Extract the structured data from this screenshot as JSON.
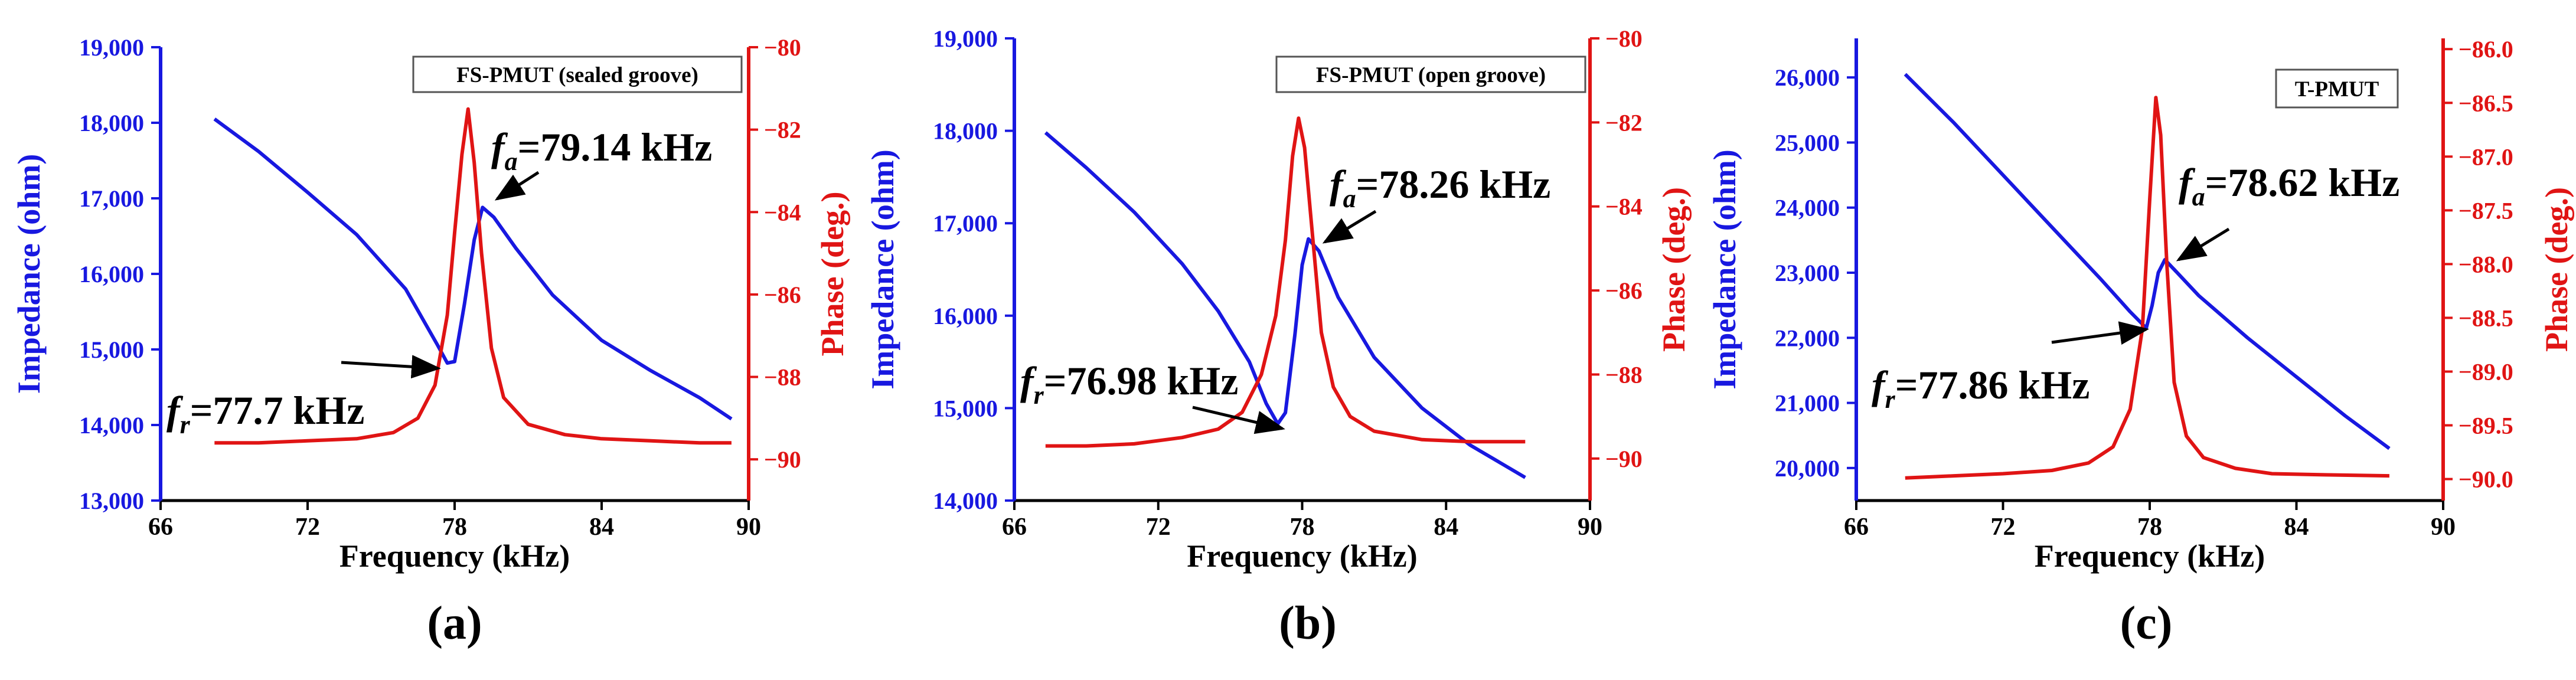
{
  "colors": {
    "impedance": "#1818e0",
    "phase": "#e01414",
    "axis_text": "#000000",
    "arrow": "#000000"
  },
  "chart_data": [
    {
      "type": "line",
      "panel_label": "(a)",
      "legend": "FS-PMUT (sealed groove)",
      "xlabel": "Frequency (kHz)",
      "ylabel": "Impedance (ohm)",
      "y2label": "Phase (deg.)",
      "xlim": [
        66,
        90
      ],
      "xticks": [
        66,
        72,
        78,
        84,
        90
      ],
      "ylim": [
        13000,
        19000
      ],
      "yticks": [
        13000,
        14000,
        15000,
        16000,
        17000,
        18000,
        19000
      ],
      "ytick_labels": [
        "13,000",
        "14,000",
        "15,000",
        "16,000",
        "17,000",
        "18,000",
        "19,000"
      ],
      "y2lim": [
        -91,
        -80
      ],
      "y2ticks": [
        -90,
        -88,
        -86,
        -84,
        -82,
        -80
      ],
      "y2tick_labels": [
        "−90",
        "−88",
        "−86",
        "−84",
        "−82",
        "−80"
      ],
      "series": [
        {
          "name": "Impedance",
          "axis": "left",
          "x": [
            68.2,
            70,
            72,
            74,
            76,
            77.3,
            77.7,
            78.0,
            78.4,
            78.8,
            79.14,
            79.6,
            80.5,
            82,
            84,
            86,
            88,
            89.3
          ],
          "y": [
            18050,
            17620,
            17080,
            16520,
            15800,
            15060,
            14820,
            14840,
            15600,
            16450,
            16880,
            16750,
            16340,
            15720,
            15120,
            14720,
            14360,
            14080
          ]
        },
        {
          "name": "Phase",
          "axis": "right",
          "x": [
            68.2,
            70,
            72,
            74,
            75.5,
            76.5,
            77.2,
            77.7,
            78.0,
            78.3,
            78.55,
            78.8,
            79.1,
            79.5,
            80.0,
            81,
            82.5,
            84,
            86,
            88,
            89.3
          ],
          "y": [
            -89.6,
            -89.6,
            -89.55,
            -89.5,
            -89.35,
            -89.0,
            -88.2,
            -86.5,
            -84.5,
            -82.6,
            -81.5,
            -82.8,
            -85.0,
            -87.3,
            -88.5,
            -89.15,
            -89.4,
            -89.5,
            -89.55,
            -89.6,
            -89.6
          ]
        }
      ],
      "annotations": [
        {
          "main": "f",
          "sub": "a",
          "text": "=79.14 kHz",
          "x": 79.14,
          "y": 16880
        },
        {
          "main": "f",
          "sub": "r",
          "text": "=77.7 kHz",
          "x": 77.7,
          "y": 14820
        }
      ]
    },
    {
      "type": "line",
      "panel_label": "(b)",
      "legend": "FS-PMUT (open groove)",
      "xlabel": "Frequency (kHz)",
      "ylabel": "Impedance (ohm)",
      "y2label": "Phase (deg.)",
      "xlim": [
        66,
        90
      ],
      "xticks": [
        66,
        72,
        78,
        84,
        90
      ],
      "ylim": [
        14000,
        19000
      ],
      "yticks": [
        14000,
        15000,
        16000,
        17000,
        18000,
        19000
      ],
      "ytick_labels": [
        "14,000",
        "15,000",
        "16,000",
        "17,000",
        "18,000",
        "19,000"
      ],
      "y2lim": [
        -91,
        -80
      ],
      "y2ticks": [
        -90,
        -88,
        -86,
        -84,
        -82,
        -80
      ],
      "y2tick_labels": [
        "−90",
        "−88",
        "−86",
        "−84",
        "−82",
        "−80"
      ],
      "series": [
        {
          "name": "Impedance",
          "axis": "left",
          "x": [
            67.3,
            69,
            71,
            73,
            74.5,
            75.8,
            76.5,
            76.98,
            77.3,
            77.7,
            78.0,
            78.26,
            78.7,
            79.5,
            81,
            83,
            85,
            87.3
          ],
          "y": [
            17980,
            17600,
            17120,
            16560,
            16050,
            15500,
            15050,
            14830,
            14950,
            15800,
            16550,
            16830,
            16700,
            16200,
            15550,
            15000,
            14600,
            14250
          ]
        },
        {
          "name": "Phase",
          "axis": "right",
          "x": [
            67.3,
            69,
            71,
            73,
            74.5,
            75.5,
            76.3,
            76.9,
            77.3,
            77.6,
            77.85,
            78.1,
            78.4,
            78.8,
            79.3,
            80,
            81,
            83,
            85,
            87.3
          ],
          "y": [
            -89.7,
            -89.7,
            -89.65,
            -89.5,
            -89.3,
            -88.9,
            -88.0,
            -86.6,
            -84.8,
            -82.8,
            -81.9,
            -82.6,
            -84.5,
            -87.0,
            -88.3,
            -89.0,
            -89.35,
            -89.55,
            -89.6,
            -89.6
          ]
        }
      ],
      "annotations": [
        {
          "main": "f",
          "sub": "a",
          "text": "=78.26 kHz",
          "x": 78.26,
          "y": 16830
        },
        {
          "main": "f",
          "sub": "r",
          "text": "=76.98 kHz",
          "x": 76.98,
          "y": 14830
        }
      ]
    },
    {
      "type": "line",
      "panel_label": "(c)",
      "legend": "T-PMUT",
      "xlabel": "Frequency (kHz)",
      "ylabel": "Impedance (ohm)",
      "y2label": "Phase (deg.)",
      "xlim": [
        66,
        90
      ],
      "xticks": [
        66,
        72,
        78,
        84,
        90
      ],
      "ylim": [
        19500,
        26600
      ],
      "yticks": [
        20000,
        21000,
        22000,
        23000,
        24000,
        25000,
        26000
      ],
      "ytick_labels": [
        "20,000",
        "21,000",
        "22,000",
        "23,000",
        "24,000",
        "25,000",
        "26,000"
      ],
      "y2lim": [
        -90.2,
        -85.9
      ],
      "y2ticks": [
        -90.0,
        -89.5,
        -89.0,
        -88.5,
        -88.0,
        -87.5,
        -87.0,
        -86.5,
        -86.0
      ],
      "y2tick_labels": [
        "−90.0",
        "−89.5",
        "−89.0",
        "−88.5",
        "−88.0",
        "−87.5",
        "−87.0",
        "−86.5",
        "−86.0"
      ],
      "series": [
        {
          "name": "Impedance",
          "axis": "left",
          "x": [
            68,
            70,
            72,
            74,
            76,
            77.2,
            77.86,
            78.1,
            78.35,
            78.62,
            79.0,
            80,
            82,
            84,
            86,
            87.8
          ],
          "y": [
            26050,
            25300,
            24500,
            23700,
            22900,
            22400,
            22150,
            22500,
            23000,
            23200,
            23050,
            22650,
            22000,
            21400,
            20800,
            20300
          ]
        },
        {
          "name": "Phase",
          "axis": "right",
          "x": [
            68,
            70,
            72,
            74,
            75.5,
            76.5,
            77.2,
            77.7,
            78.0,
            78.25,
            78.45,
            78.7,
            79.0,
            79.5,
            80.2,
            81.5,
            83,
            85,
            87.8
          ],
          "y": [
            -89.99,
            -89.97,
            -89.95,
            -89.92,
            -89.85,
            -89.7,
            -89.35,
            -88.6,
            -87.4,
            -86.45,
            -86.8,
            -88.0,
            -89.1,
            -89.6,
            -89.8,
            -89.9,
            -89.95,
            -89.96,
            -89.97
          ]
        }
      ],
      "annotations": [
        {
          "main": "f",
          "sub": "a",
          "text": "=78.62 kHz",
          "x": 78.62,
          "y": 23200
        },
        {
          "main": "f",
          "sub": "r",
          "text": "=77.86 kHz",
          "x": 77.86,
          "y": 22150
        }
      ]
    }
  ]
}
